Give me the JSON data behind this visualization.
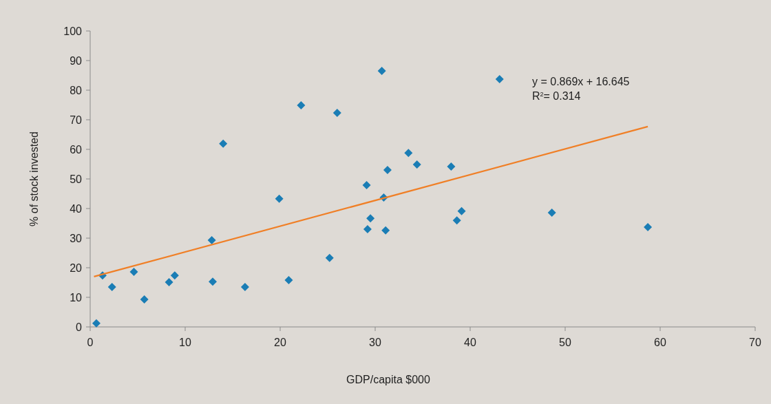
{
  "chart_data": {
    "type": "scatter",
    "xlabel": "GDP/capita $000",
    "ylabel": "% of stock invested",
    "xlim": [
      0,
      70
    ],
    "xticks": [
      0,
      10,
      20,
      30,
      40,
      50,
      60,
      70
    ],
    "ylim": [
      0,
      100
    ],
    "yticks": [
      0,
      10,
      20,
      30,
      40,
      50,
      60,
      70,
      80,
      90,
      100
    ],
    "grid": false,
    "series": [
      {
        "color": "#1a7db5",
        "marker": "diamond",
        "x": [
          0.65,
          1.3,
          2.3,
          4.6,
          5.7,
          8.3,
          8.9,
          12.8,
          12.9,
          14.0,
          16.3,
          19.9,
          20.9,
          22.2,
          25.2,
          26.0,
          29.1,
          29.2,
          29.5,
          30.7,
          30.9,
          31.1,
          31.3,
          33.5,
          34.4,
          38.0,
          38.6,
          39.1,
          43.1,
          48.6,
          58.7
        ],
        "values": [
          1.2,
          17.4,
          13.5,
          18.6,
          9.3,
          15.1,
          17.4,
          29.3,
          15.3,
          61.9,
          13.5,
          43.3,
          15.8,
          74.9,
          23.3,
          72.3,
          47.9,
          33.0,
          36.7,
          86.5,
          43.7,
          32.6,
          53.0,
          58.8,
          54.9,
          54.2,
          36.0,
          39.1,
          83.7,
          38.6,
          33.7
        ]
      },
      {
        "type": "line",
        "color": "#f07f26",
        "marker": "none",
        "line_style": "solid",
        "x": [
          0.4,
          58.7
        ],
        "values": [
          17.0,
          67.7
        ]
      }
    ],
    "annotations": [
      "y = 0.869x + 16.645",
      "R$^{2}$= 0.314"
    ]
  }
}
